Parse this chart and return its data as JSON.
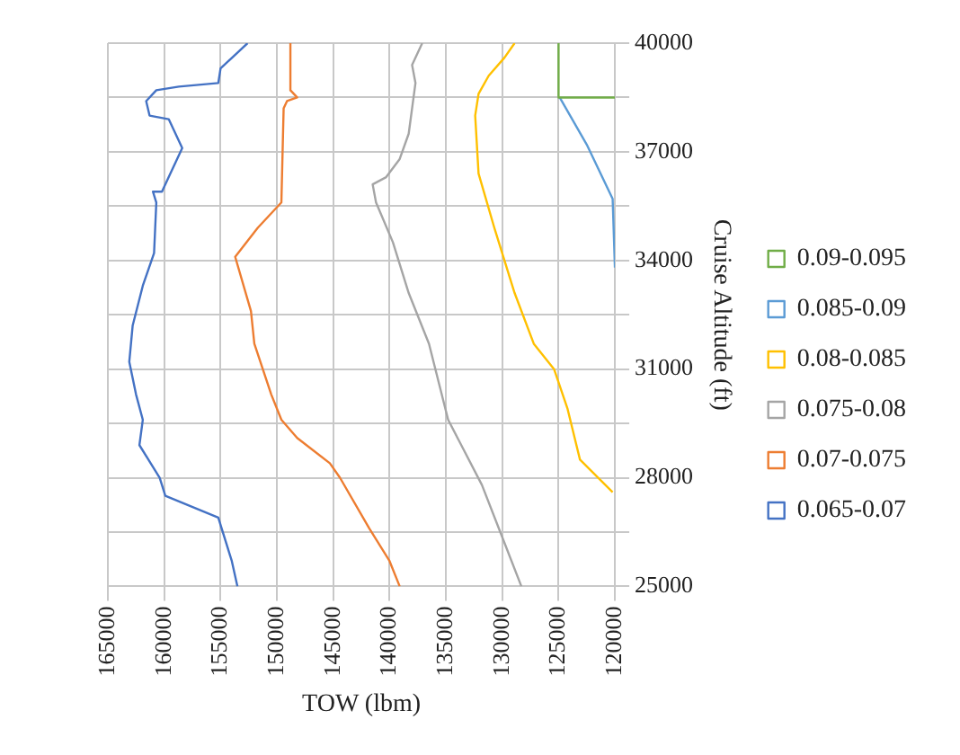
{
  "chart_data": {
    "type": "line",
    "xlabel": "TOW (lbm)",
    "ylabel": "Cruise Altitude (ft)",
    "xlim": [
      165000,
      120000
    ],
    "xticks": [
      165000,
      160000,
      155000,
      150000,
      145000,
      140000,
      135000,
      130000,
      125000,
      120000
    ],
    "ylim": [
      25000,
      40000
    ],
    "yticks": [
      25000,
      {
        "value": 26500,
        "label": null
      },
      28000,
      {
        "value": 29500,
        "label": null
      },
      31000,
      {
        "value": 32500,
        "label": null
      },
      34000,
      {
        "value": 35500,
        "label": null
      },
      37000,
      {
        "value": 38500,
        "label": null
      },
      40000
    ],
    "grid": true,
    "legend": "right",
    "marker": "none",
    "line_style": "solid",
    "series": [
      {
        "name": "0.09-0.095",
        "color": "#70ad47",
        "x": [
          125000,
          125000,
          120000
        ],
        "values": [
          40000,
          38500,
          38500
        ]
      },
      {
        "name": "0.085-0.09",
        "color": "#5b9bd5",
        "x": [
          124900,
          122500,
          120200,
          120000
        ],
        "values": [
          38500,
          37200,
          35700,
          33800
        ]
      },
      {
        "name": "0.08-0.085",
        "color": "#ffc000",
        "x": [
          128900,
          129800,
          131200,
          132100,
          132400,
          132100,
          130700,
          128900,
          127200,
          125400,
          124200,
          123100,
          120200
        ],
        "values": [
          40000,
          39600,
          39100,
          38600,
          38000,
          36400,
          34900,
          33100,
          31700,
          31000,
          29900,
          28500,
          27600
        ]
      },
      {
        "name": "0.075-0.08",
        "color": "#a5a5a5",
        "x": [
          137100,
          138000,
          137700,
          138300,
          139100,
          140300,
          141500,
          141200,
          139700,
          138300,
          136500,
          134800,
          131800,
          129800,
          128300
        ],
        "values": [
          40000,
          39400,
          38900,
          37500,
          36800,
          36300,
          36100,
          35600,
          34500,
          33100,
          31700,
          29600,
          27800,
          26200,
          25000
        ]
      },
      {
        "name": "0.07-0.075",
        "color": "#ed7d31",
        "x": [
          148800,
          148800,
          148200,
          149100,
          149400,
          149600,
          151700,
          153700,
          152300,
          152000,
          150500,
          149600,
          148200,
          145300,
          144400,
          141800,
          140000,
          139100
        ],
        "values": [
          40000,
          38700,
          38500,
          38400,
          38200,
          35600,
          34900,
          34100,
          32600,
          31700,
          30300,
          29600,
          29100,
          28400,
          28000,
          26600,
          25700,
          25000
        ]
      },
      {
        "name": "0.065-0.07",
        "color": "#4472c4",
        "x": [
          152600,
          155000,
          155200,
          158700,
          160700,
          161600,
          161300,
          159600,
          158400,
          159600,
          160200,
          161000,
          160700,
          160900,
          161900,
          162800,
          163100,
          162500,
          161900,
          162200,
          160400,
          159900,
          155200,
          154000,
          153500
        ],
        "values": [
          40000,
          39300,
          38900,
          38800,
          38700,
          38400,
          38000,
          37900,
          37100,
          36300,
          35900,
          35900,
          35600,
          34200,
          33300,
          32200,
          31200,
          30300,
          29600,
          28900,
          28000,
          27500,
          26900,
          25700,
          25000
        ]
      }
    ]
  }
}
